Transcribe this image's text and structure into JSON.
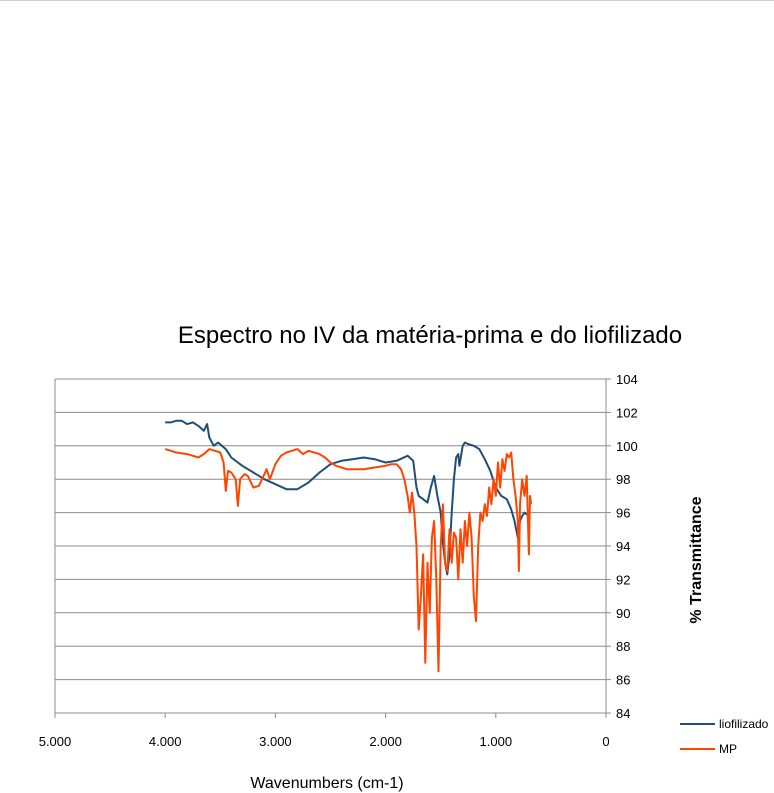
{
  "chart_data": {
    "type": "line",
    "title": "Espectro no IV da matéria-prima e do liofilizado",
    "xlabel": "Wavenumbers (cm-1)",
    "ylabel": "% Transmittance",
    "xlim": [
      5000,
      0
    ],
    "ylim": [
      84,
      104
    ],
    "x_ticks": [
      {
        "value": 5000,
        "label": "5.000"
      },
      {
        "value": 4000,
        "label": "4.000"
      },
      {
        "value": 3000,
        "label": "3.000"
      },
      {
        "value": 2000,
        "label": "2.000"
      },
      {
        "value": 1000,
        "label": "1.000"
      },
      {
        "value": 0,
        "label": "0"
      }
    ],
    "y_ticks": [
      84,
      86,
      88,
      90,
      92,
      94,
      96,
      98,
      100,
      102,
      104
    ],
    "grid": "horizontal",
    "legend_position": "bottom-right",
    "series": [
      {
        "name": "liofilizado",
        "color": "#1f4e79",
        "points": [
          [
            4000,
            101.4
          ],
          [
            3950,
            101.4
          ],
          [
            3900,
            101.5
          ],
          [
            3850,
            101.5
          ],
          [
            3800,
            101.3
          ],
          [
            3750,
            101.4
          ],
          [
            3700,
            101.2
          ],
          [
            3650,
            100.9
          ],
          [
            3620,
            101.3
          ],
          [
            3600,
            100.5
          ],
          [
            3560,
            100.0
          ],
          [
            3520,
            100.2
          ],
          [
            3450,
            99.8
          ],
          [
            3400,
            99.3
          ],
          [
            3300,
            98.8
          ],
          [
            3200,
            98.4
          ],
          [
            3100,
            98.0
          ],
          [
            3000,
            97.7
          ],
          [
            2900,
            97.4
          ],
          [
            2800,
            97.4
          ],
          [
            2700,
            97.8
          ],
          [
            2600,
            98.4
          ],
          [
            2500,
            98.9
          ],
          [
            2400,
            99.1
          ],
          [
            2300,
            99.2
          ],
          [
            2200,
            99.3
          ],
          [
            2100,
            99.2
          ],
          [
            2000,
            99.0
          ],
          [
            1900,
            99.1
          ],
          [
            1800,
            99.4
          ],
          [
            1750,
            99.1
          ],
          [
            1720,
            97.5
          ],
          [
            1700,
            97.0
          ],
          [
            1660,
            96.8
          ],
          [
            1620,
            96.6
          ],
          [
            1590,
            97.5
          ],
          [
            1560,
            98.2
          ],
          [
            1530,
            97.0
          ],
          [
            1500,
            96.0
          ],
          [
            1480,
            94.2
          ],
          [
            1460,
            93.0
          ],
          [
            1440,
            92.3
          ],
          [
            1420,
            93.5
          ],
          [
            1400,
            96.0
          ],
          [
            1380,
            98.0
          ],
          [
            1360,
            99.3
          ],
          [
            1340,
            99.5
          ],
          [
            1330,
            98.8
          ],
          [
            1300,
            100.0
          ],
          [
            1280,
            100.2
          ],
          [
            1250,
            100.1
          ],
          [
            1200,
            100.0
          ],
          [
            1150,
            99.8
          ],
          [
            1100,
            99.2
          ],
          [
            1050,
            98.5
          ],
          [
            1000,
            97.5
          ],
          [
            950,
            97.0
          ],
          [
            900,
            96.8
          ],
          [
            860,
            96.2
          ],
          [
            830,
            95.5
          ],
          [
            800,
            94.5
          ],
          [
            780,
            95.5
          ],
          [
            760,
            95.8
          ],
          [
            740,
            96.0
          ],
          [
            720,
            95.9
          ],
          [
            700,
            95.8
          ]
        ]
      },
      {
        "name": "MP",
        "color": "#ff4500",
        "points": [
          [
            4000,
            99.8
          ],
          [
            3900,
            99.6
          ],
          [
            3800,
            99.5
          ],
          [
            3700,
            99.3
          ],
          [
            3650,
            99.5
          ],
          [
            3600,
            99.8
          ],
          [
            3550,
            99.7
          ],
          [
            3500,
            99.6
          ],
          [
            3470,
            99.0
          ],
          [
            3450,
            97.3
          ],
          [
            3430,
            98.5
          ],
          [
            3400,
            98.4
          ],
          [
            3360,
            98.0
          ],
          [
            3340,
            96.4
          ],
          [
            3320,
            98.0
          ],
          [
            3280,
            98.3
          ],
          [
            3250,
            98.2
          ],
          [
            3200,
            97.5
          ],
          [
            3150,
            97.6
          ],
          [
            3100,
            98.3
          ],
          [
            3080,
            98.6
          ],
          [
            3050,
            98.0
          ],
          [
            3000,
            98.9
          ],
          [
            2950,
            99.4
          ],
          [
            2900,
            99.6
          ],
          [
            2850,
            99.7
          ],
          [
            2800,
            99.8
          ],
          [
            2750,
            99.5
          ],
          [
            2700,
            99.7
          ],
          [
            2650,
            99.6
          ],
          [
            2600,
            99.5
          ],
          [
            2550,
            99.3
          ],
          [
            2500,
            99.0
          ],
          [
            2450,
            98.8
          ],
          [
            2400,
            98.7
          ],
          [
            2350,
            98.6
          ],
          [
            2300,
            98.6
          ],
          [
            2200,
            98.6
          ],
          [
            2100,
            98.7
          ],
          [
            2000,
            98.8
          ],
          [
            1950,
            98.9
          ],
          [
            1900,
            98.9
          ],
          [
            1860,
            98.6
          ],
          [
            1830,
            98.0
          ],
          [
            1800,
            97.0
          ],
          [
            1780,
            96.0
          ],
          [
            1760,
            97.2
          ],
          [
            1740,
            96.0
          ],
          [
            1720,
            94.0
          ],
          [
            1700,
            89.0
          ],
          [
            1680,
            91.0
          ],
          [
            1660,
            93.5
          ],
          [
            1640,
            87.0
          ],
          [
            1620,
            93.0
          ],
          [
            1600,
            90.0
          ],
          [
            1580,
            94.5
          ],
          [
            1560,
            95.5
          ],
          [
            1540,
            92.0
          ],
          [
            1520,
            86.5
          ],
          [
            1500,
            94.0
          ],
          [
            1480,
            96.5
          ],
          [
            1460,
            93.0
          ],
          [
            1440,
            92.5
          ],
          [
            1420,
            95.0
          ],
          [
            1400,
            93.0
          ],
          [
            1380,
            94.8
          ],
          [
            1360,
            94.5
          ],
          [
            1340,
            92.0
          ],
          [
            1320,
            95.0
          ],
          [
            1300,
            93.0
          ],
          [
            1280,
            95.5
          ],
          [
            1260,
            94.0
          ],
          [
            1240,
            96.0
          ],
          [
            1220,
            94.5
          ],
          [
            1200,
            91.0
          ],
          [
            1180,
            89.5
          ],
          [
            1160,
            94.0
          ],
          [
            1140,
            96.0
          ],
          [
            1120,
            95.5
          ],
          [
            1100,
            96.5
          ],
          [
            1080,
            95.8
          ],
          [
            1060,
            97.5
          ],
          [
            1040,
            96.5
          ],
          [
            1020,
            98.0
          ],
          [
            1000,
            97.0
          ],
          [
            980,
            99.0
          ],
          [
            960,
            97.5
          ],
          [
            940,
            99.2
          ],
          [
            920,
            98.5
          ],
          [
            900,
            99.5
          ],
          [
            880,
            99.3
          ],
          [
            860,
            99.6
          ],
          [
            840,
            98.0
          ],
          [
            820,
            97.0
          ],
          [
            800,
            95.5
          ],
          [
            790,
            92.5
          ],
          [
            780,
            96.5
          ],
          [
            760,
            98.0
          ],
          [
            740,
            97.0
          ],
          [
            720,
            98.2
          ],
          [
            700,
            93.5
          ],
          [
            690,
            97.0
          ],
          [
            680,
            96.5
          ]
        ]
      }
    ]
  }
}
